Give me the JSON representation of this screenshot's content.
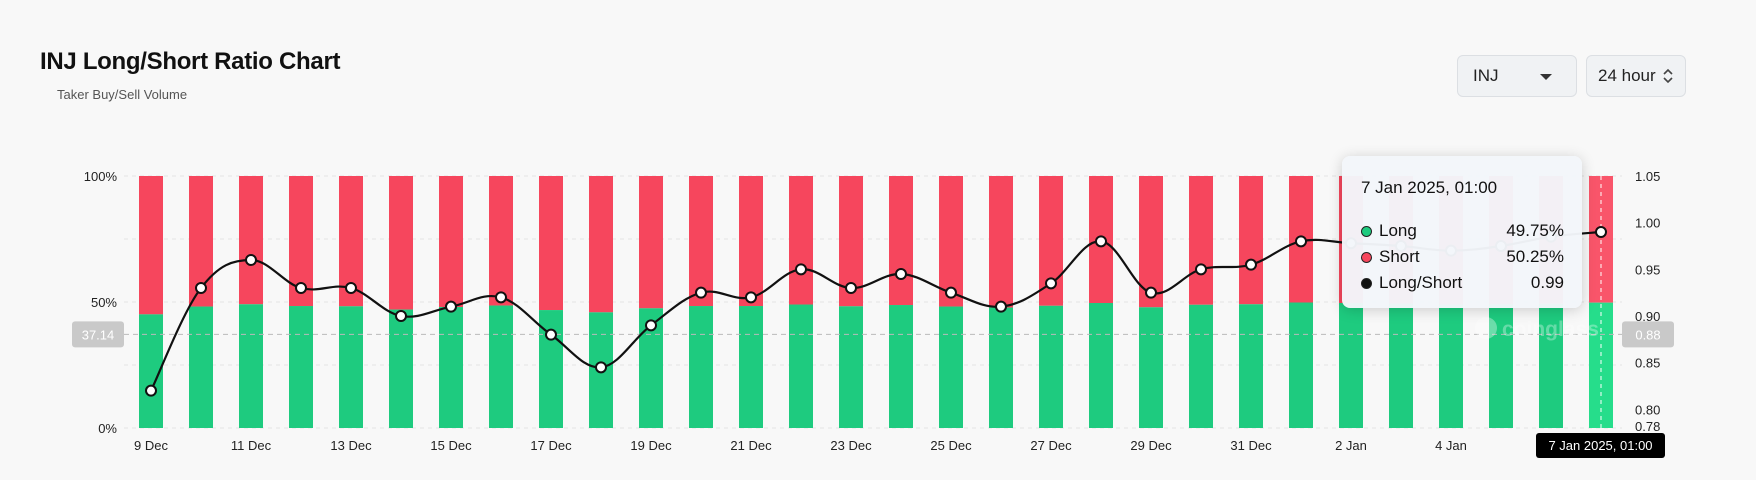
{
  "header": {
    "title": "INJ Long/Short Ratio Chart",
    "subtitle": "Taker Buy/Sell Volume"
  },
  "controls": {
    "coin": "INJ",
    "period": "24 hour"
  },
  "colors": {
    "long": "#1ecb7f",
    "short": "#f6465d",
    "line": "#111111"
  },
  "chart_data": {
    "type": "bar",
    "secondary_type": "line",
    "x": [
      "9 Dec",
      "10 Dec",
      "11 Dec",
      "12 Dec",
      "13 Dec",
      "14 Dec",
      "15 Dec",
      "16 Dec",
      "17 Dec",
      "18 Dec",
      "19 Dec",
      "20 Dec",
      "21 Dec",
      "22 Dec",
      "23 Dec",
      "24 Dec",
      "25 Dec",
      "26 Dec",
      "27 Dec",
      "28 Dec",
      "29 Dec",
      "30 Dec",
      "31 Dec",
      "1 Jan",
      "2 Jan",
      "3 Jan",
      "4 Jan",
      "5 Jan",
      "6 Jan",
      "7 Jan"
    ],
    "x_tick_labels": [
      "9 Dec",
      "11 Dec",
      "13 Dec",
      "15 Dec",
      "17 Dec",
      "19 Dec",
      "21 Dec",
      "23 Dec",
      "25 Dec",
      "27 Dec",
      "29 Dec",
      "31 Dec",
      "2 Jan",
      "4 Jan"
    ],
    "series": [
      {
        "name": "Long",
        "axis": "left",
        "unit": "%",
        "values": [
          45.1,
          48.2,
          49.1,
          48.4,
          48.3,
          47.0,
          48.0,
          48.6,
          46.8,
          45.9,
          47.5,
          48.4,
          48.4,
          49.0,
          48.3,
          48.8,
          48.2,
          47.8,
          48.5,
          49.6,
          47.9,
          48.9,
          49.1,
          49.8,
          49.6,
          49.4,
          49.0,
          49.1,
          49.3,
          49.75
        ]
      },
      {
        "name": "Short",
        "axis": "left",
        "unit": "%",
        "values": [
          54.9,
          51.8,
          50.9,
          51.6,
          51.7,
          53.0,
          52.0,
          51.4,
          53.2,
          54.1,
          52.5,
          51.6,
          51.6,
          51.0,
          51.7,
          51.2,
          51.8,
          52.2,
          51.5,
          50.4,
          52.1,
          51.1,
          50.9,
          50.2,
          50.4,
          50.6,
          51.0,
          50.9,
          50.7,
          50.25
        ]
      },
      {
        "name": "Long/Short",
        "axis": "right",
        "values": [
          0.82,
          0.93,
          0.96,
          0.93,
          0.93,
          0.9,
          0.91,
          0.92,
          0.88,
          0.845,
          0.89,
          0.925,
          0.92,
          0.95,
          0.93,
          0.945,
          0.925,
          0.91,
          0.935,
          0.98,
          0.925,
          0.95,
          0.955,
          0.98,
          0.978,
          0.975,
          0.97,
          0.975,
          0.985,
          0.99
        ]
      }
    ],
    "y_left": {
      "ticks": [
        "0%",
        "50%",
        "100%"
      ],
      "range": [
        0,
        100
      ]
    },
    "y_right": {
      "ticks": [
        "0.78",
        "0.80",
        "0.85",
        "0.90",
        "0.95",
        "1.00",
        "1.05"
      ],
      "range": [
        0.78,
        1.05
      ]
    },
    "crosshair": {
      "left_value": "37.14",
      "right_value": "0.88",
      "x_label": "7 Jan 2025, 01:00"
    },
    "watermark": "coinglass",
    "tooltip": {
      "title": "7 Jan 2025, 01:00",
      "rows": [
        {
          "label": "Long",
          "value": "49.75%",
          "color": "#1ecb7f"
        },
        {
          "label": "Short",
          "value": "50.25%",
          "color": "#f6465d"
        },
        {
          "label": "Long/Short",
          "value": "0.99",
          "color": "#111111"
        }
      ]
    }
  }
}
